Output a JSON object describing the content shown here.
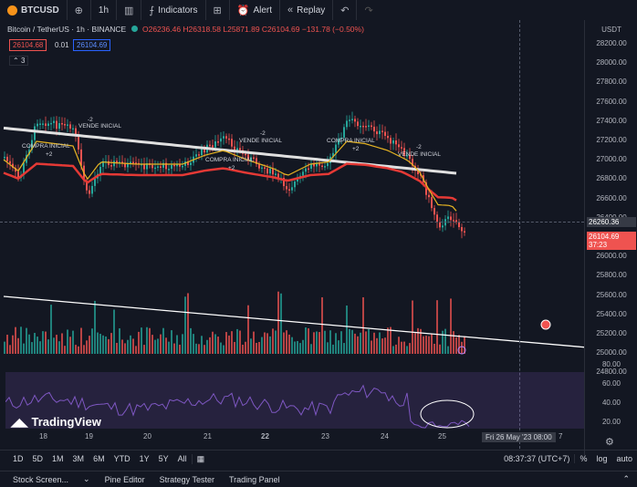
{
  "toolbar": {
    "symbol": "BTCUSD",
    "interval": "1h",
    "indicators_label": "Indicators",
    "alert_label": "Alert",
    "replay_label": "Replay"
  },
  "legend": {
    "title": "Bitcoin / TetherUS · 1h · BINANCE",
    "ohlc": "O26236.46 H26318.58 L25871.89 C26104.69 −131.78 (−0.50%)",
    "sell_price": "26104.68",
    "spread": "0.01",
    "buy_price": "26104.69",
    "collapsed_count": "3"
  },
  "price_axis": {
    "currency": "USDT",
    "ticks": [
      "28200.00",
      "28000.00",
      "27800.00",
      "27600.00",
      "27400.00",
      "27200.00",
      "27000.00",
      "26800.00",
      "26600.00",
      "26400.00",
      "26200.00",
      "26000.00",
      "25800.00",
      "25600.00",
      "25400.00",
      "25200.00",
      "25000.00",
      "24800.00"
    ],
    "crosshair_price": "26260.36",
    "last_price": "26104.69",
    "countdown": "37:23"
  },
  "rsi_axis": {
    "ticks": [
      "80.00",
      "60.00",
      "40.00",
      "20.00"
    ]
  },
  "annotations": [
    {
      "text": "VENDE INICIAL"
    },
    {
      "text": "COMPRA INICIAL"
    },
    {
      "text": "+2"
    },
    {
      "text": "-2"
    },
    {
      "text": "VENDE INICIAL"
    },
    {
      "text": "COMPRA INICIAL"
    },
    {
      "text": "+2"
    },
    {
      "text": "-2"
    },
    {
      "text": "COMPRA INICIAL"
    },
    {
      "text": "VENDE INICIAL"
    },
    {
      "text": "+2"
    },
    {
      "text": "-2"
    }
  ],
  "brand": "TradingView",
  "date_axis": {
    "labels": [
      "18",
      "19",
      "20",
      "21",
      "22",
      "23",
      "24",
      "25",
      "7"
    ],
    "crosshair_date": "Fri 26 May '23  08:00"
  },
  "range_bar": {
    "ranges": [
      "1D",
      "5D",
      "1M",
      "3M",
      "6M",
      "YTD",
      "1Y",
      "5Y",
      "All"
    ],
    "clock": "08:37:37 (UTC+7)",
    "percent": "%",
    "log": "log",
    "auto": "auto"
  },
  "bottom_tabs": [
    "Stock Screen...",
    "Pine Editor",
    "Strategy Tester",
    "Trading Panel"
  ],
  "colors": {
    "up": "#26a69a",
    "down": "#ef5350",
    "ema_white": "#e0e0e0",
    "ema_red": "#e53935",
    "ema_yellow": "#e6b422",
    "rsi": "#7e57c2"
  }
}
